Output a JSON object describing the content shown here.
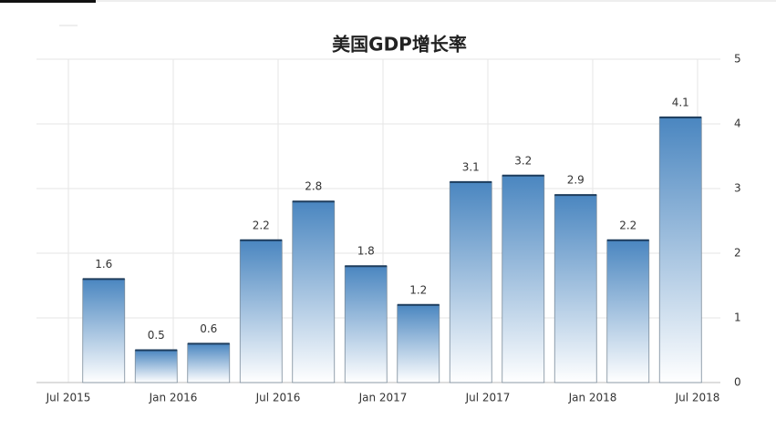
{
  "chart_data": {
    "type": "bar",
    "title": "美国GDP增长率",
    "values": [
      1.6,
      0.5,
      0.6,
      2.2,
      2.8,
      1.8,
      1.2,
      3.1,
      3.2,
      2.9,
      2.2,
      4.1
    ],
    "xtick_labels": [
      "Jul 2015",
      "Jan 2016",
      "Jul 2016",
      "Jan 2017",
      "Jul 2017",
      "Jan 2018",
      "Jul 2018"
    ],
    "color": "#4a86c0",
    "ylim": [
      0,
      5
    ],
    "yticks": [
      0,
      1,
      2,
      3,
      4,
      5
    ],
    "grid": true,
    "y_axis_side": "right"
  }
}
